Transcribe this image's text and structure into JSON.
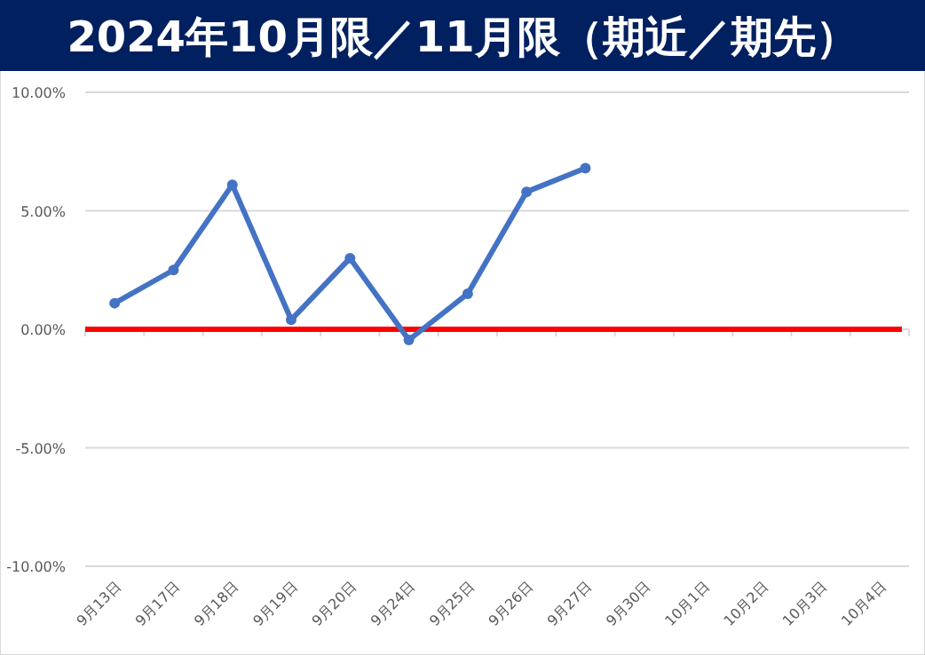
{
  "chart_data": {
    "type": "line",
    "title": "2024年10月限／11月限（期近／期先）",
    "categories": [
      "9月13日",
      "9月17日",
      "9月18日",
      "9月19日",
      "9月20日",
      "9月24日",
      "9月25日",
      "9月26日",
      "9月27日",
      "9月30日",
      "10月1日",
      "10月2日",
      "10月3日",
      "10月4日"
    ],
    "series": [
      {
        "color": "#4472c4",
        "values": [
          1.1,
          2.5,
          6.1,
          0.4,
          3.0,
          -0.45,
          1.5,
          5.8,
          6.8,
          null,
          null,
          null,
          null,
          null
        ]
      }
    ],
    "ylim": [
      -10,
      10
    ],
    "yticks": [
      {
        "value": -10,
        "label": "-10.00%"
      },
      {
        "value": -5,
        "label": "-5.00%"
      },
      {
        "value": 0,
        "label": "0.00%"
      },
      {
        "value": 5,
        "label": "5.00%"
      },
      {
        "value": 10,
        "label": "10.00%"
      }
    ],
    "ref_lines": [
      {
        "axis": "y",
        "value": 0,
        "color": "#ff0000"
      }
    ],
    "grid": "y",
    "marker": "circle",
    "line_style": "solid"
  }
}
